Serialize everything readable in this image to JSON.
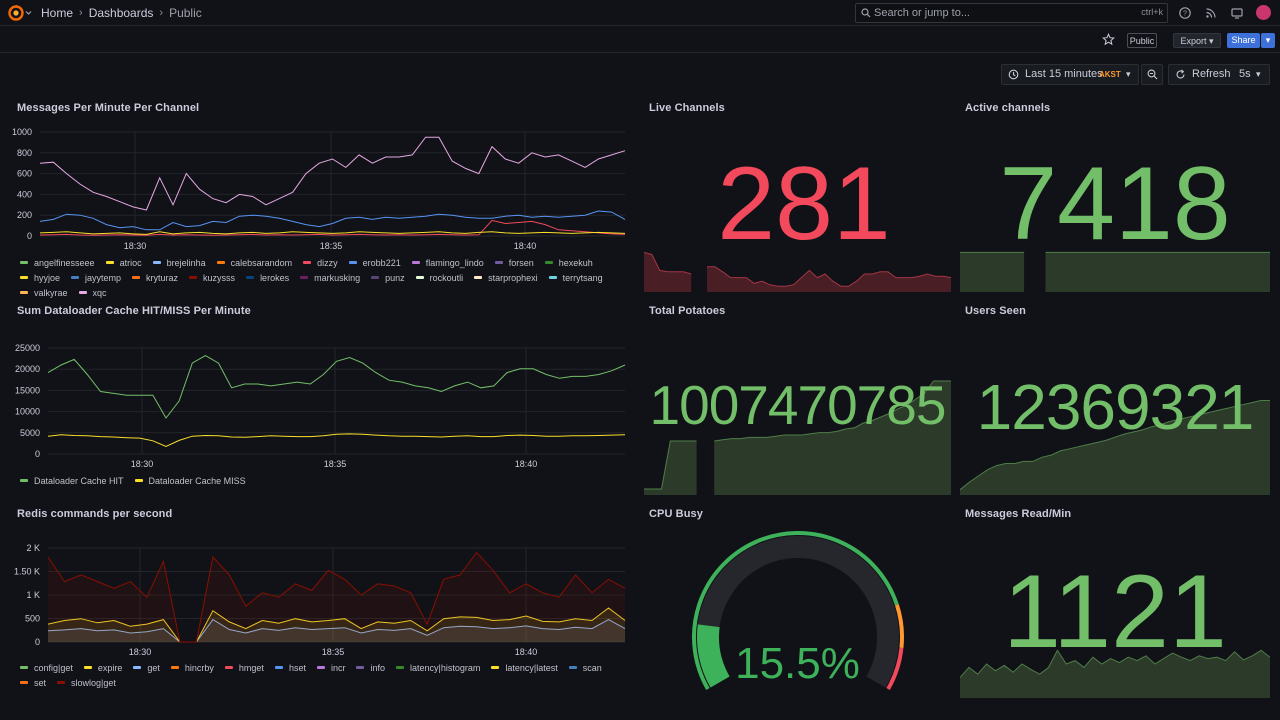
{
  "breadcrumbs": {
    "home": "Home",
    "dashboards": "Dashboards",
    "current": "Public"
  },
  "search": {
    "placeholder": "Search or jump to...",
    "shortcut": "ctrl+k"
  },
  "toolbar": {
    "public_badge": "Public",
    "export_label": "Export",
    "share_label": "Share"
  },
  "time_controls": {
    "range_label": "Last 15 minutes",
    "timezone": "AKST",
    "refresh_label": "Refresh",
    "refresh_interval": "5s"
  },
  "colors": {
    "red_stat": "#f2495c",
    "green_stat": "#73bf69",
    "background": "#111217",
    "accent_blue": "#3d71d9"
  },
  "panels": {
    "messages_per_minute": {
      "title": "Messages Per Minute Per Channel",
      "legend": [
        {
          "name": "angelfinesseee",
          "color": "#73bf69"
        },
        {
          "name": "atrioc",
          "color": "#fade2a"
        },
        {
          "name": "brejelinha",
          "color": "#8ab8ff"
        },
        {
          "name": "calebsarandom",
          "color": "#ff780a"
        },
        {
          "name": "dizzy",
          "color": "#f2495c"
        },
        {
          "name": "erobb221",
          "color": "#5794f2"
        },
        {
          "name": "flamingo_lindo",
          "color": "#b877d9"
        },
        {
          "name": "forsen",
          "color": "#705da0"
        },
        {
          "name": "hexekuh",
          "color": "#37872d"
        },
        {
          "name": "hyyjoe",
          "color": "#fade2a"
        },
        {
          "name": "jayytemp",
          "color": "#447ebc"
        },
        {
          "name": "kryturaz",
          "color": "#f2711c"
        },
        {
          "name": "kuzysss",
          "color": "#890f02"
        },
        {
          "name": "lerokes",
          "color": "#0a437c"
        },
        {
          "name": "markusking",
          "color": "#6d1f62"
        },
        {
          "name": "punz",
          "color": "#584477"
        },
        {
          "name": "rockoutli",
          "color": "#e0f9d7"
        },
        {
          "name": "starprophexi",
          "color": "#fceaca"
        },
        {
          "name": "terrytsang",
          "color": "#6ed0e0"
        },
        {
          "name": "valkyrae",
          "color": "#ffb357"
        },
        {
          "name": "xqc",
          "color": "#e5a8e2"
        }
      ],
      "chart_data": {
        "type": "line",
        "y_ticks": [
          "1000",
          "800",
          "600",
          "400",
          "200",
          "0"
        ],
        "x_ticks": [
          "18:30",
          "18:35",
          "18:40"
        ],
        "ylim": [
          0,
          1000
        ],
        "series": [
          {
            "name": "xqc",
            "values": [
              700,
              710,
              600,
              500,
              420,
              380,
              330,
              280,
              250,
              560,
              300,
              600,
              450,
              360,
              320,
              400,
              380,
              300,
              360,
              420,
              600,
              700,
              740,
              660,
              780,
              700,
              760,
              760,
              780,
              950,
              950,
              720,
              650,
              600,
              860,
              740,
              700,
              800,
              760,
              780,
              720,
              660,
              740,
              780,
              820
            ]
          },
          {
            "name": "erobb221",
            "values": [
              140,
              160,
              210,
              200,
              170,
              110,
              80,
              90,
              60,
              60,
              130,
              90,
              100,
              140,
              130,
              190,
              200,
              190,
              170,
              140,
              110,
              90,
              120,
              170,
              180,
              160,
              180,
              170,
              180,
              190,
              210,
              200,
              180,
              170,
              170,
              190,
              200,
              180,
              190,
              180,
              190,
              200,
              240,
              230,
              160
            ]
          },
          {
            "name": "atrioc",
            "values": [
              30,
              35,
              40,
              30,
              20,
              25,
              30,
              20,
              15,
              40,
              20,
              30,
              35,
              25,
              20,
              30,
              35,
              25,
              30,
              40,
              35,
              30,
              25,
              30,
              40,
              35,
              30,
              25,
              30,
              35,
              40,
              30,
              25,
              35,
              40,
              30,
              25,
              30,
              35,
              30,
              25,
              30,
              35,
              30,
              25
            ]
          },
          {
            "name": "dizzy",
            "values": [
              10,
              12,
              15,
              10,
              8,
              10,
              12,
              10,
              8,
              15,
              10,
              12,
              10,
              8,
              10,
              12,
              15,
              10,
              12,
              10,
              12,
              15,
              10,
              12,
              15,
              12,
              10,
              12,
              10,
              12,
              15,
              12,
              10,
              12,
              150,
              120,
              130,
              140,
              110,
              60,
              50,
              40,
              30,
              20,
              15
            ]
          }
        ]
      }
    },
    "live_channels": {
      "title": "Live Channels",
      "value": "281",
      "sparkline": [
        0.55,
        0.52,
        0.3,
        0.28,
        0.28,
        0.28,
        0.25,
        null,
        0.35,
        0.35,
        0.28,
        0.2,
        0.2,
        0.2,
        0.12,
        0.15,
        0.1,
        0.08,
        0.08,
        0.1,
        0.2,
        0.3,
        0.2,
        0.25,
        0.15,
        0.08,
        0.08,
        0.15,
        0.25,
        0.25,
        0.28,
        0.28,
        0.2,
        0.2,
        0.2,
        0.22,
        0.25,
        0.22,
        0.22,
        0.2
      ]
    },
    "active_channels": {
      "title": "Active channels",
      "value": "7418",
      "sparkline": [
        0.55,
        0.55,
        0.55,
        0.55,
        0.55,
        0.55,
        0.55,
        null,
        0.55,
        0.55,
        0.55,
        0.55,
        0.55,
        0.55,
        0.55,
        0.55,
        0.55,
        0.55,
        0.55,
        0.55,
        0.55,
        0.55,
        0.55,
        0.55,
        0.55,
        0.55,
        0.55,
        0.55,
        0.55,
        0.55
      ]
    },
    "dataloader_cache": {
      "title": "Sum Dataloader Cache HIT/MISS Per Minute",
      "legend": [
        {
          "name": "Dataloader Cache HIT",
          "color": "#73bf69"
        },
        {
          "name": "Dataloader Cache MISS",
          "color": "#fade2a"
        }
      ],
      "chart_data": {
        "type": "line",
        "y_ticks": [
          "25000",
          "20000",
          "15000",
          "10000",
          "5000",
          "0"
        ],
        "x_ticks": [
          "18:30",
          "18:35",
          "18:40"
        ],
        "ylim": [
          0,
          28000
        ],
        "series": [
          {
            "name": "Dataloader Cache HIT",
            "values": [
              21500,
              23500,
              25000,
              21000,
              16500,
              16000,
              15500,
              15500,
              15500,
              9500,
              14000,
              24000,
              26000,
              24000,
              17500,
              18500,
              18500,
              18000,
              18500,
              19000,
              18500,
              21000,
              24500,
              25500,
              24000,
              21500,
              19500,
              19000,
              18000,
              17500,
              16500,
              18000,
              19000,
              17500,
              18000,
              21500,
              22500,
              22500,
              21000,
              20000,
              20500,
              20500,
              21000,
              22000,
              23500
            ]
          },
          {
            "name": "Dataloader Cache MISS",
            "values": [
              4700,
              5100,
              4900,
              4800,
              4600,
              4500,
              4300,
              4200,
              3500,
              2000,
              3600,
              4700,
              4900,
              4800,
              4500,
              4400,
              4600,
              4800,
              4700,
              4600,
              4600,
              4800,
              5200,
              5300,
              5200,
              5000,
              4800,
              4700,
              4700,
              4600,
              4500,
              4700,
              4800,
              4600,
              4600,
              4900,
              5000,
              4900,
              4700,
              4700,
              4800,
              4800,
              4900,
              5000,
              5100
            ]
          }
        ]
      }
    },
    "total_potatoes": {
      "title": "Total Potatoes",
      "value": "1007470785",
      "sparkline": [
        0.05,
        0.05,
        0.05,
        0.45,
        0.45,
        0.45,
        0.45,
        null,
        0.45,
        0.46,
        0.47,
        0.47,
        0.48,
        0.48,
        0.48,
        0.49,
        0.5,
        0.5,
        0.5,
        0.51,
        0.52,
        0.52,
        0.53,
        0.55,
        0.56,
        0.6,
        0.62,
        0.65,
        0.68,
        0.72,
        0.75,
        0.8,
        0.85,
        0.95,
        0.95,
        0.95
      ]
    },
    "users_seen": {
      "title": "Users Seen",
      "value": "12369321",
      "sparkline": [
        0.05,
        0.12,
        0.18,
        0.24,
        0.28,
        0.3,
        0.3,
        0.32,
        0.32,
        0.36,
        0.38,
        0.42,
        0.44,
        0.46,
        0.48,
        0.5,
        0.52,
        0.55,
        0.58,
        0.6,
        0.62,
        0.65,
        0.67,
        0.7,
        0.72,
        0.74,
        0.76,
        0.78,
        0.8,
        0.82,
        0.84,
        0.86,
        0.88,
        0.9,
        0.9
      ]
    },
    "redis_commands": {
      "title": "Redis commands per second",
      "legend": [
        {
          "name": "config|get",
          "color": "#73bf69"
        },
        {
          "name": "expire",
          "color": "#fade2a"
        },
        {
          "name": "get",
          "color": "#8ab8ff"
        },
        {
          "name": "hincrby",
          "color": "#ff780a"
        },
        {
          "name": "hmget",
          "color": "#f2495c"
        },
        {
          "name": "hset",
          "color": "#5794f2"
        },
        {
          "name": "incr",
          "color": "#b877d9"
        },
        {
          "name": "info",
          "color": "#705da0"
        },
        {
          "name": "latency|histogram",
          "color": "#37872d"
        },
        {
          "name": "latency|latest",
          "color": "#fade2a"
        },
        {
          "name": "scan",
          "color": "#447ebc"
        },
        {
          "name": "set",
          "color": "#f2711c"
        },
        {
          "name": "slowlog|get",
          "color": "#890f02"
        }
      ],
      "chart_data": {
        "type": "area",
        "y_ticks": [
          "2 K",
          "1.50 K",
          "1 K",
          "500",
          "0"
        ],
        "x_ticks": [
          "18:30",
          "18:35",
          "18:40"
        ],
        "ylim": [
          0,
          2100
        ],
        "series": [
          {
            "name": "slowlog|get",
            "values": [
              1900,
              1350,
              1500,
              1350,
              1200,
              1350,
              1000,
              1800,
              0,
              0,
              1900,
              1500,
              800,
              1100,
              1000,
              1300,
              1150,
              1600,
              1400,
              1050,
              1300,
              1250,
              1100,
              400,
              1400,
              1500,
              2000,
              1600,
              1100,
              1300,
              1100,
              1000,
              1500,
              1100,
              1400,
              1200
            ]
          },
          {
            "name": "expire",
            "values": [
              400,
              480,
              520,
              430,
              480,
              350,
              400,
              500,
              0,
              0,
              700,
              450,
              300,
              480,
              420,
              520,
              450,
              480,
              520,
              300,
              450,
              420,
              480,
              250,
              520,
              560,
              550,
              480,
              500,
              580,
              460,
              450,
              520,
              480,
              760,
              480
            ]
          },
          {
            "name": "get",
            "values": [
              250,
              270,
              300,
              250,
              270,
              200,
              230,
              300,
              0,
              0,
              500,
              280,
              200,
              300,
              260,
              320,
              280,
              300,
              320,
              200,
              280,
              260,
              300,
              150,
              320,
              350,
              340,
              300,
              320,
              360,
              300,
              280,
              330,
              300,
              500,
              300
            ]
          }
        ]
      }
    },
    "cpu_busy": {
      "title": "CPU Busy",
      "value": "15.5%",
      "gauge_fraction": 0.155
    },
    "messages_read": {
      "title": "Messages Read/Min",
      "value": "1121",
      "sparkline": [
        0.3,
        0.45,
        0.35,
        0.5,
        0.4,
        0.48,
        0.38,
        0.5,
        0.42,
        0.35,
        0.45,
        0.7,
        0.5,
        0.55,
        0.45,
        0.6,
        0.5,
        0.58,
        0.52,
        0.6,
        0.55,
        0.62,
        0.5,
        0.58,
        0.66,
        0.6,
        0.55,
        0.62,
        0.58,
        0.6,
        0.55,
        0.68,
        0.56,
        0.62,
        0.7,
        0.6
      ]
    }
  }
}
